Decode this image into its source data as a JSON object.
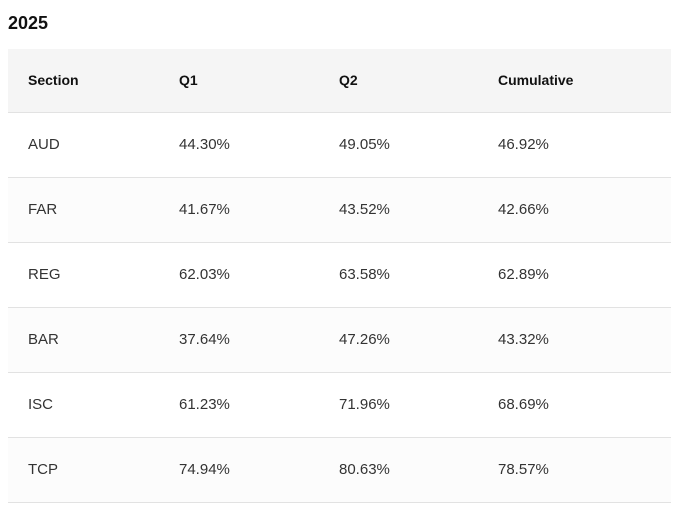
{
  "title": "2025",
  "table": {
    "headers": [
      "Section",
      "Q1",
      "Q2",
      "Cumulative"
    ],
    "rows": [
      [
        "AUD",
        "44.30%",
        "49.05%",
        "46.92%"
      ],
      [
        "FAR",
        "41.67%",
        "43.52%",
        "42.66%"
      ],
      [
        "REG",
        "62.03%",
        "63.58%",
        "62.89%"
      ],
      [
        "BAR",
        "37.64%",
        "47.26%",
        "43.32%"
      ],
      [
        "ISC",
        "61.23%",
        "71.96%",
        "68.69%"
      ],
      [
        "TCP",
        "74.94%",
        "80.63%",
        "78.57%"
      ]
    ]
  }
}
